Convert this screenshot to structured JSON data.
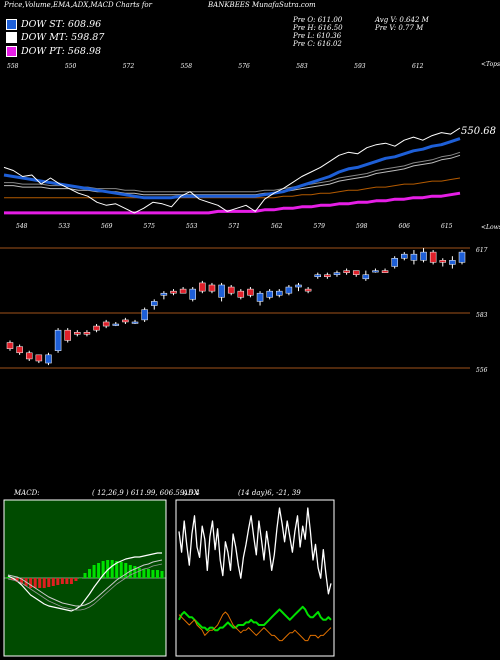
{
  "header": {
    "title": "Price,Volume,EMA,ADX,MACD Charts for",
    "site": "BANKBEES MunafaSutra.com"
  },
  "legend": [
    {
      "label": "DOW ST: 608.96",
      "color": "#1e5fd7"
    },
    {
      "label": "DOW MT: 598.87",
      "color": "#ffffff"
    },
    {
      "label": "DOW PT: 568.98",
      "color": "#e61ee6"
    }
  ],
  "quote": {
    "open": "Pre   O: 611.00",
    "high": "Pre   H: 616.50",
    "low": "Pre   L: 610.36",
    "close": "Pre   C: 616.02",
    "avg_vol": "Avg V: 0.642  M",
    "vol": "Pre   V: 0.77 M"
  },
  "colors": {
    "ema_short": "#1e5fd7",
    "ema_mid": "#ffffff",
    "ema_long": "#e61ee6",
    "ema_orange": "#b35a00",
    "bull": "#1e5fd7",
    "bear": "#e0202a",
    "ref_line": "#a0521a",
    "macd_bg": "#004b00",
    "macd_hist_pos": "#00e000",
    "macd_hist_neg": "#e02020",
    "adx_line": "#ffffff",
    "adx_green": "#00e000",
    "adx_orange": "#e07000"
  },
  "panels": {
    "ema_top_right": "<Tops",
    "ema_low_right": "<Lows",
    "ema_last_label": "550.68",
    "macd_label": "MACD:",
    "macd_params": "( 12,26,9 ) 611.99,  606.59,  5.4",
    "adx_label": "ADX",
    "adx_params": "(14  day)6,  -21,  39"
  },
  "chart_data": [
    {
      "type": "line",
      "name": "ema_panel",
      "tops": [
        "558",
        "550",
        "572",
        "558",
        "576",
        "583",
        "593",
        "612"
      ],
      "lows": [
        "548",
        "533",
        "569",
        "575",
        "553",
        "571",
        "562",
        "579",
        "598",
        "606",
        "615"
      ],
      "close": [
        590,
        588,
        584,
        585,
        579,
        583,
        579,
        576,
        573,
        571,
        567,
        565,
        566,
        563,
        560,
        563,
        567,
        566,
        564,
        571,
        574,
        569,
        567,
        565,
        561,
        563,
        565,
        561,
        569,
        573,
        576,
        580,
        584,
        587,
        590,
        594,
        598,
        600,
        599,
        603,
        605,
        606,
        604,
        608,
        610,
        608,
        611,
        613,
        612,
        616
      ],
      "ema_short": [
        585,
        584,
        583,
        582,
        581,
        580,
        579,
        578,
        577,
        576,
        575,
        574,
        573,
        572,
        571,
        570,
        570,
        570,
        570,
        571,
        571,
        571,
        571,
        571,
        571,
        571,
        571,
        571,
        572,
        573,
        574,
        576,
        578,
        580,
        582,
        584,
        587,
        589,
        590,
        592,
        594,
        596,
        597,
        599,
        601,
        602,
        604,
        605,
        607,
        609
      ],
      "ema_mid": [
        578,
        578,
        577,
        577,
        577,
        576,
        576,
        576,
        575,
        575,
        574,
        574,
        574,
        573,
        573,
        572,
        572,
        572,
        572,
        572,
        572,
        572,
        572,
        572,
        572,
        572,
        572,
        572,
        573,
        573,
        574,
        575,
        576,
        577,
        578,
        579,
        581,
        582,
        583,
        584,
        586,
        587,
        588,
        589,
        591,
        592,
        593,
        595,
        596,
        598
      ],
      "ema_long": [
        560,
        560,
        560,
        560,
        560,
        560,
        560,
        560,
        560,
        560,
        560,
        560,
        560,
        560,
        560,
        560,
        560,
        560,
        560,
        560,
        560,
        560,
        560,
        561,
        561,
        561,
        561,
        561,
        562,
        562,
        563,
        563,
        564,
        564,
        565,
        565,
        566,
        566,
        567,
        567,
        568,
        568,
        569,
        569,
        570,
        570,
        571,
        571,
        572,
        573
      ],
      "ema_orange": [
        570,
        570,
        570,
        570,
        570,
        570,
        570,
        570,
        570,
        570,
        570,
        570,
        570,
        570,
        570,
        570,
        570,
        570,
        570,
        570,
        570,
        570,
        570,
        570,
        570,
        570,
        570,
        570,
        570,
        570,
        571,
        571,
        572,
        572,
        573,
        573,
        574,
        575,
        575,
        576,
        577,
        577,
        578,
        579,
        579,
        580,
        581,
        581,
        582,
        583
      ]
    },
    {
      "type": "candlestick",
      "name": "price_panel",
      "ref_levels": [
        "617",
        "583",
        "556"
      ],
      "ohlc": [
        [
          572,
          573,
          568,
          569
        ],
        [
          570,
          571,
          566,
          567
        ],
        [
          567,
          568,
          563,
          564
        ],
        [
          566,
          566,
          562,
          563
        ],
        [
          562,
          567,
          561,
          566
        ],
        [
          568,
          579,
          567,
          578
        ],
        [
          578,
          579,
          572,
          573
        ],
        [
          577,
          578,
          575,
          576
        ],
        [
          577,
          578,
          575,
          576
        ],
        [
          580,
          581,
          577,
          578
        ],
        [
          582,
          583,
          579,
          580
        ],
        [
          581,
          582,
          580,
          581
        ],
        [
          583,
          584,
          581,
          582
        ],
        [
          582,
          583,
          581,
          582
        ],
        [
          583,
          589,
          582,
          588
        ],
        [
          590,
          593,
          588,
          592
        ],
        [
          595,
          597,
          593,
          596
        ],
        [
          597,
          598,
          595,
          596
        ],
        [
          598,
          599,
          596,
          596
        ],
        [
          593,
          599,
          592,
          598
        ],
        [
          601,
          602,
          596,
          597
        ],
        [
          600,
          601,
          596,
          597
        ],
        [
          594,
          601,
          592,
          600
        ],
        [
          599,
          600,
          595,
          596
        ],
        [
          597,
          598,
          593,
          594
        ],
        [
          598,
          599,
          594,
          595
        ],
        [
          592,
          597,
          590,
          596
        ],
        [
          594,
          598,
          593,
          597
        ],
        [
          595,
          598,
          594,
          597
        ],
        [
          596,
          600,
          595,
          599
        ],
        [
          599,
          601,
          597,
          600
        ],
        [
          598,
          599,
          596,
          597
        ],
        [
          604,
          606,
          603,
          605
        ],
        [
          605,
          606,
          603,
          604
        ],
        [
          605,
          607,
          604,
          606
        ],
        [
          607,
          608,
          605,
          606
        ],
        [
          607,
          607,
          604,
          605
        ],
        [
          603,
          607,
          602,
          605
        ],
        [
          607,
          608,
          606,
          607
        ],
        [
          607,
          608,
          606,
          606
        ],
        [
          609,
          614,
          608,
          613
        ],
        [
          613,
          616,
          612,
          615
        ],
        [
          612,
          617,
          610,
          615
        ],
        [
          612,
          618,
          611,
          616
        ],
        [
          616,
          617,
          610,
          611
        ],
        [
          612,
          613,
          609,
          611
        ],
        [
          610,
          614,
          608,
          612
        ],
        [
          611,
          617,
          610,
          616
        ]
      ]
    },
    {
      "type": "line",
      "name": "macd_panel",
      "macd": [
        0.2,
        0.0,
        -0.3,
        -0.7,
        -1.2,
        -1.7,
        -2.0,
        -2.3,
        -2.6,
        -2.8,
        -2.9,
        -3.0,
        -3.1,
        -3.2,
        -3.3,
        -3.1,
        -2.8,
        -2.2,
        -1.6,
        -0.9,
        -0.3,
        0.3,
        0.8,
        1.2,
        1.5,
        1.7,
        1.9,
        2.0,
        2.1,
        2.1,
        2.2,
        2.3,
        2.4,
        2.5,
        2.5
      ],
      "signal": [
        0.3,
        0.2,
        0.1,
        -0.1,
        -0.4,
        -0.7,
        -1.0,
        -1.3,
        -1.6,
        -1.9,
        -2.1,
        -2.3,
        -2.5,
        -2.6,
        -2.7,
        -2.8,
        -2.8,
        -2.7,
        -2.5,
        -2.2,
        -1.8,
        -1.4,
        -1.0,
        -0.6,
        -0.2,
        0.1,
        0.4,
        0.7,
        0.9,
        1.1,
        1.3,
        1.4,
        1.6,
        1.7,
        1.8
      ],
      "hist": [
        0.1,
        -0.2,
        -0.4,
        -0.6,
        -0.8,
        -1.0,
        -1.0,
        -1.0,
        -1.0,
        -0.9,
        -0.8,
        -0.7,
        -0.6,
        -0.6,
        -0.6,
        -0.3,
        0.0,
        0.5,
        0.9,
        1.3,
        1.5,
        1.7,
        1.8,
        1.8,
        1.7,
        1.6,
        1.5,
        1.3,
        1.2,
        1.0,
        0.9,
        0.9,
        0.8,
        0.8,
        0.7
      ],
      "ylim": [
        -4,
        4
      ]
    },
    {
      "type": "line",
      "name": "adx_panel",
      "adx": [
        46,
        38,
        50,
        41,
        33,
        45,
        52,
        40,
        36,
        48,
        43,
        31,
        44,
        50,
        39,
        47,
        35,
        29,
        42,
        38,
        31,
        45,
        40,
        33,
        28,
        36,
        41,
        47,
        52,
        44,
        37,
        50,
        43,
        35,
        46,
        39,
        31,
        37,
        47,
        55,
        49,
        42,
        50,
        44,
        38,
        46,
        52,
        40,
        48,
        43,
        55,
        46,
        35,
        41,
        32,
        28,
        39,
        30,
        22,
        26
      ],
      "green": [
        12,
        14,
        15,
        14,
        13,
        13,
        12,
        11,
        10,
        9,
        9,
        8,
        9,
        9,
        8,
        8,
        9,
        9,
        10,
        11,
        10,
        9,
        9,
        10,
        10,
        10,
        11,
        11,
        12,
        11,
        11,
        10,
        10,
        10,
        11,
        12,
        13,
        14,
        15,
        16,
        15,
        14,
        13,
        12,
        13,
        14,
        15,
        16,
        17,
        16,
        14,
        13,
        13,
        14,
        15,
        13,
        12,
        12,
        13,
        12
      ],
      "orange": [
        14,
        13,
        12,
        11,
        10,
        11,
        12,
        10,
        9,
        8,
        6,
        7,
        8,
        8,
        9,
        10,
        12,
        14,
        15,
        14,
        12,
        10,
        9,
        8,
        7,
        8,
        8,
        9,
        8,
        7,
        6,
        7,
        8,
        9,
        8,
        7,
        6,
        6,
        5,
        4,
        4,
        5,
        6,
        7,
        7,
        8,
        7,
        6,
        5,
        4,
        4,
        6,
        6,
        6,
        5,
        6,
        6,
        7,
        8,
        9
      ],
      "ylim": [
        0,
        60
      ]
    }
  ]
}
